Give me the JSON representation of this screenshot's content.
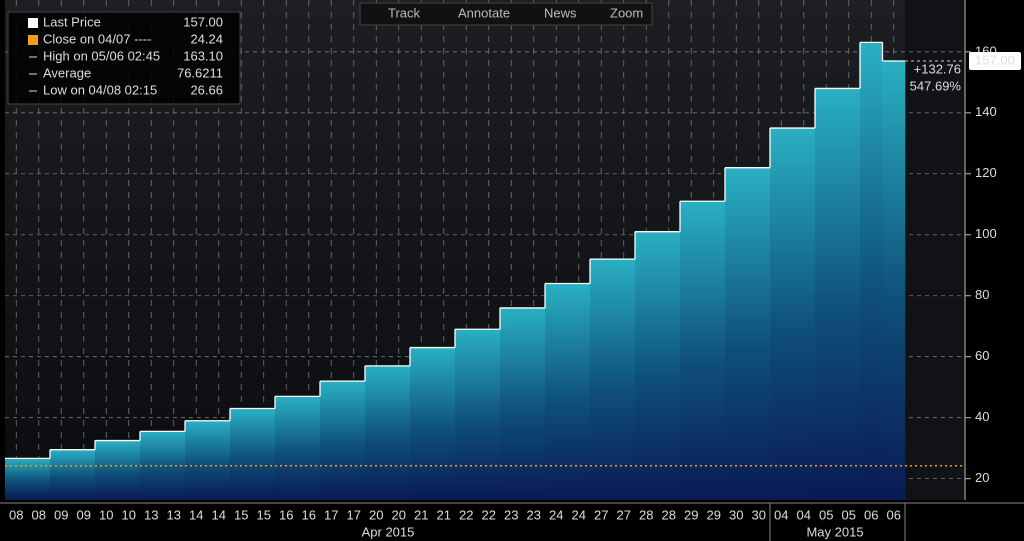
{
  "chart_data": {
    "type": "step-area",
    "categories": [
      "08",
      "08",
      "09",
      "09",
      "10",
      "10",
      "13",
      "13",
      "14",
      "14",
      "15",
      "15",
      "16",
      "16",
      "17",
      "17",
      "20",
      "20",
      "21",
      "21",
      "22",
      "22",
      "23",
      "23",
      "24",
      "24",
      "27",
      "27",
      "28",
      "28",
      "29",
      "29",
      "30",
      "30",
      "04",
      "04",
      "05",
      "05",
      "06",
      "06"
    ],
    "values": [
      26.66,
      26.66,
      29.5,
      29.5,
      32.5,
      32.5,
      35.5,
      35.5,
      39,
      39,
      43,
      43,
      47,
      47,
      52,
      52,
      57,
      57,
      63,
      63,
      69,
      69,
      76,
      76,
      84,
      84,
      92,
      92,
      101,
      101,
      111,
      111,
      122,
      122,
      135,
      135,
      148,
      148,
      163.1,
      157
    ],
    "periods": [
      "Apr 2015",
      "May 2015"
    ],
    "ylim": [
      13,
      177
    ],
    "yticks": [
      20,
      40,
      60,
      80,
      100,
      120,
      140,
      160
    ],
    "grid": true,
    "color": "#2aa8bd",
    "close_value": 24.24,
    "last_price": {
      "value": 157,
      "label": "157.00"
    },
    "change": "+132.76",
    "change_pct": "547.69%",
    "legend": [
      {
        "label": "Last Price",
        "value": "157.00"
      },
      {
        "label": "Close on 04/07 ----"
      },
      {
        "label": "High on 05/06 02:45",
        "value": "163.10"
      },
      {
        "label": "Average",
        "value": "76.6211"
      },
      {
        "label": "Low on 04/08 02:15",
        "value": "26.66"
      }
    ],
    "toolbar": [
      "Track",
      "Annotate",
      "News",
      "Zoom"
    ]
  }
}
